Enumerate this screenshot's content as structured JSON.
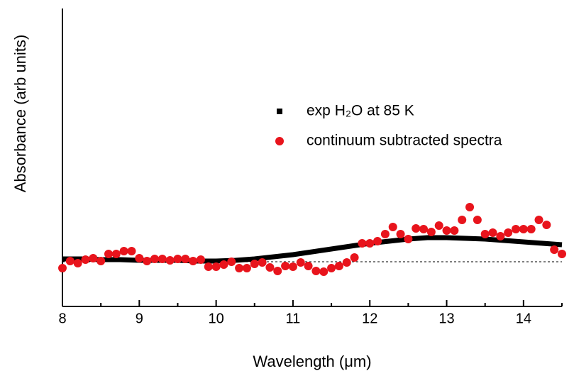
{
  "chart_data": {
    "type": "scatter",
    "x_label": "Wavelength (μm)",
    "y_label": "Absorbance (arb units)",
    "xlim": [
      8,
      14.5
    ],
    "xticks": [
      8,
      9,
      10,
      11,
      12,
      13,
      14
    ],
    "xminorticks": [
      8.5,
      9.5,
      10.5,
      11.5,
      12.5,
      13.5,
      14.5
    ],
    "ylim": [
      -0.63,
      3.57
    ],
    "hline": 0,
    "series": [
      {
        "name": "exp H₂O at 85 K",
        "color": "#000000",
        "marker": "square",
        "connected": true,
        "x": [
          8,
          8.25,
          8.5,
          8.75,
          9,
          9.25,
          9.5,
          9.75,
          10,
          10.25,
          10.5,
          10.75,
          11,
          11.25,
          11.5,
          11.75,
          12,
          12.25,
          12.5,
          12.75,
          13,
          13.25,
          13.5,
          13.75,
          14,
          14.25,
          14.5
        ],
        "values": [
          0.04,
          0.04,
          0.03,
          0.03,
          0.02,
          0.02,
          0.02,
          0.01,
          0.01,
          0.02,
          0.04,
          0.07,
          0.1,
          0.14,
          0.18,
          0.22,
          0.26,
          0.29,
          0.32,
          0.34,
          0.34,
          0.33,
          0.32,
          0.3,
          0.28,
          0.26,
          0.24
        ]
      },
      {
        "name": "continuum subtracted spectra",
        "color": "#e8141c",
        "marker": "circle",
        "connected": false,
        "x": [
          8.0,
          8.1,
          8.2,
          8.3,
          8.4,
          8.5,
          8.6,
          8.7,
          8.8,
          8.9,
          9.0,
          9.1,
          9.2,
          9.3,
          9.4,
          9.5,
          9.6,
          9.7,
          9.8,
          9.9,
          10.0,
          10.1,
          10.2,
          10.3,
          10.4,
          10.5,
          10.6,
          10.7,
          10.8,
          10.9,
          11.0,
          11.1,
          11.2,
          11.3,
          11.4,
          11.5,
          11.6,
          11.7,
          11.8,
          11.9,
          12.0,
          12.1,
          12.2,
          12.3,
          12.4,
          12.5,
          12.6,
          12.7,
          12.8,
          12.9,
          13.0,
          13.1,
          13.2,
          13.3,
          13.4,
          13.5,
          13.6,
          13.7,
          13.8,
          13.9,
          14.0,
          14.1,
          14.2,
          14.3,
          14.4,
          14.5
        ],
        "values": [
          -0.09,
          0.01,
          -0.02,
          0.03,
          0.05,
          0.01,
          0.11,
          0.11,
          0.15,
          0.15,
          0.05,
          0.01,
          0.04,
          0.04,
          0.02,
          0.04,
          0.04,
          0.01,
          0.03,
          -0.07,
          -0.07,
          -0.04,
          0,
          -0.09,
          -0.09,
          -0.03,
          -0.01,
          -0.08,
          -0.13,
          -0.06,
          -0.07,
          -0.01,
          -0.06,
          -0.13,
          -0.14,
          -0.09,
          -0.06,
          -0.01,
          0.06,
          0.26,
          0.26,
          0.29,
          0.39,
          0.49,
          0.39,
          0.32,
          0.47,
          0.46,
          0.42,
          0.51,
          0.44,
          0.44,
          0.59,
          0.77,
          0.59,
          0.39,
          0.41,
          0.36,
          0.41,
          0.46,
          0.46,
          0.46,
          0.59,
          0.52,
          0.17,
          0.11
        ]
      }
    ]
  }
}
